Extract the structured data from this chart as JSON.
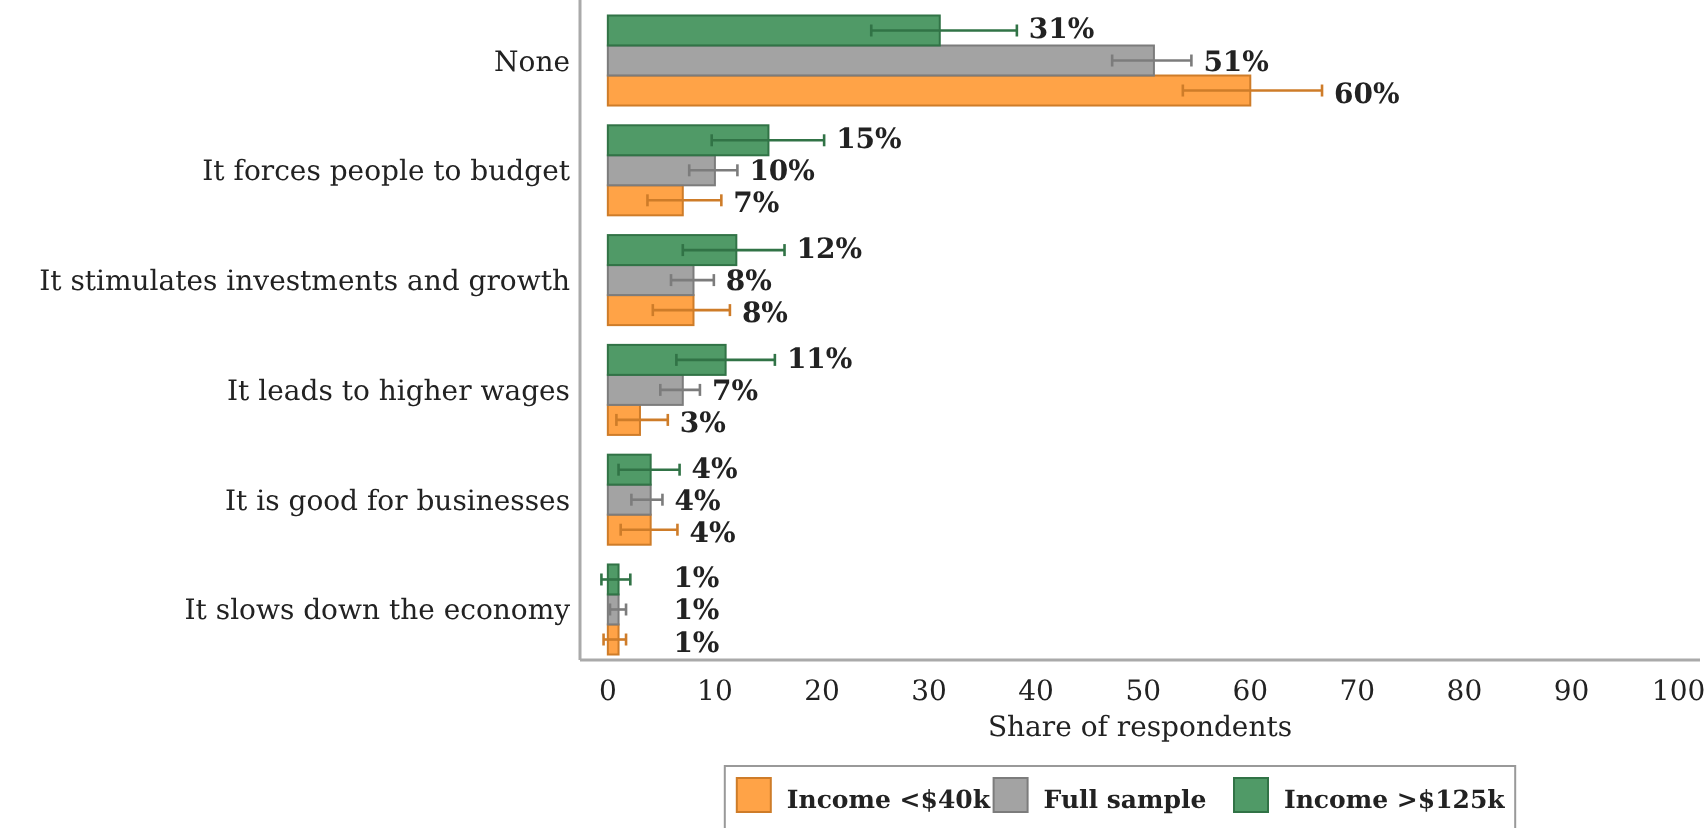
{
  "chart_data": {
    "type": "bar",
    "orientation": "horizontal",
    "xlabel": "Share of respondents",
    "categories": [
      "None",
      "It forces people to budget",
      "It stimulates investments and growth",
      "It leads to higher wages",
      "It is good for businesses",
      "It slows down the economy"
    ],
    "series": [
      {
        "name": "Income <$40k",
        "color": "#ff9933",
        "values": [
          60,
          7,
          8,
          3,
          4,
          1
        ],
        "value_labels": [
          "60%",
          "7%",
          "8%",
          "3%",
          "4%",
          "1%"
        ],
        "errors": [
          [
            53.7,
            66.7
          ],
          [
            3.7,
            10.6
          ],
          [
            4.2,
            11.4
          ],
          [
            0.8,
            5.6
          ],
          [
            1.2,
            6.5
          ],
          [
            -0.4,
            1.7
          ]
        ]
      },
      {
        "name": "Full sample",
        "color": "#999999",
        "values": [
          51,
          10,
          8,
          7,
          4,
          1
        ],
        "value_labels": [
          "51%",
          "10%",
          "8%",
          "7%",
          "4%",
          "1%"
        ],
        "errors": [
          [
            47.1,
            54.5
          ],
          [
            7.6,
            12.1
          ],
          [
            5.9,
            9.9
          ],
          [
            4.9,
            8.6
          ],
          [
            2.2,
            5.1
          ],
          [
            0.2,
            1.7
          ]
        ]
      },
      {
        "name": "Income >$125k",
        "color": "#3d8f57",
        "values": [
          31,
          15,
          12,
          11,
          4,
          1
        ],
        "value_labels": [
          "31%",
          "15%",
          "12%",
          "11%",
          "4%",
          "1%"
        ],
        "errors": [
          [
            24.6,
            38.2
          ],
          [
            9.7,
            20.2
          ],
          [
            7,
            16.5
          ],
          [
            6.4,
            15.6
          ],
          [
            1,
            6.7
          ],
          [
            -0.6,
            2.1
          ]
        ]
      }
    ],
    "xlim": [
      -2.6,
      102
    ],
    "xticks": [
      0,
      10,
      20,
      30,
      40,
      50,
      60,
      70,
      80,
      90,
      100
    ],
    "legend": "bottom",
    "grid": false
  }
}
